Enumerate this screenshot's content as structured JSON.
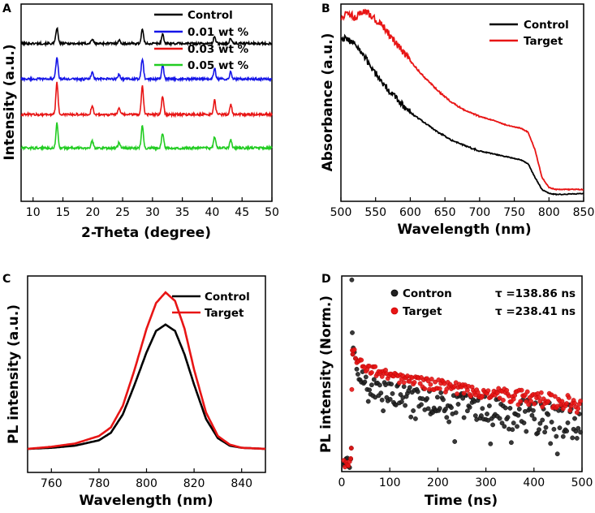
{
  "chart_data": [
    {
      "panel": "A",
      "type": "line",
      "xlabel": "2-Theta (degree)",
      "ylabel": "Intensity (a.u.)",
      "xlim": [
        8,
        50
      ],
      "xticks": [
        10,
        15,
        20,
        25,
        30,
        35,
        40,
        45,
        50
      ],
      "y_ticks_labeled": false,
      "peaks_deg": [
        14.0,
        19.9,
        24.4,
        28.3,
        31.7,
        40.4,
        43.1
      ],
      "peak_heights": [
        1.0,
        0.28,
        0.22,
        0.9,
        0.6,
        0.45,
        0.32
      ],
      "series": [
        {
          "name": "Control",
          "color": "#000000",
          "baseline": 0.8,
          "scale": 0.8
        },
        {
          "name": "0.01 wt %",
          "color": "#1515e8",
          "baseline": 0.62,
          "scale": 1.15
        },
        {
          "name": "0.03 wt %",
          "color": "#e81515",
          "baseline": 0.44,
          "scale": 1.6
        },
        {
          "name": "0.05 wt %",
          "color": "#22cc22",
          "baseline": 0.27,
          "scale": 1.25
        }
      ]
    },
    {
      "panel": "B",
      "type": "line",
      "xlabel": "Wavelength (nm)",
      "ylabel": "Absorbance (a.u.)",
      "xlim": [
        500,
        850
      ],
      "xticks": [
        500,
        550,
        600,
        650,
        700,
        750,
        800,
        850
      ],
      "y_ticks_labeled": false,
      "series": [
        {
          "name": "Control",
          "color": "#000000",
          "x": [
            500,
            510,
            520,
            540,
            560,
            580,
            600,
            620,
            640,
            660,
            680,
            700,
            720,
            740,
            760,
            770,
            780,
            790,
            800,
            810,
            820,
            850
          ],
          "y": [
            0.83,
            0.82,
            0.8,
            0.7,
            0.6,
            0.52,
            0.45,
            0.4,
            0.35,
            0.31,
            0.28,
            0.255,
            0.24,
            0.225,
            0.21,
            0.19,
            0.12,
            0.06,
            0.04,
            0.035,
            0.035,
            0.04
          ]
        },
        {
          "name": "Target",
          "color": "#e81515",
          "x": [
            500,
            510,
            520,
            530,
            540,
            550,
            560,
            580,
            600,
            620,
            640,
            660,
            680,
            700,
            720,
            740,
            760,
            770,
            780,
            790,
            800,
            810,
            820,
            850
          ],
          "y": [
            0.93,
            0.96,
            0.93,
            0.96,
            0.95,
            0.92,
            0.89,
            0.8,
            0.71,
            0.63,
            0.56,
            0.5,
            0.46,
            0.43,
            0.41,
            0.385,
            0.37,
            0.35,
            0.26,
            0.12,
            0.07,
            0.06,
            0.06,
            0.06
          ]
        }
      ]
    },
    {
      "panel": "C",
      "type": "line",
      "xlabel": "Wavelength (nm)",
      "ylabel": "PL intensity (a.u.)",
      "xlim": [
        750,
        850
      ],
      "xticks": [
        760,
        780,
        800,
        820,
        840
      ],
      "y_ticks_labeled": false,
      "series": [
        {
          "name": "Control",
          "color": "#000000",
          "x": [
            750,
            760,
            770,
            780,
            785,
            790,
            795,
            800,
            804,
            808,
            812,
            816,
            820,
            825,
            830,
            835,
            840,
            850
          ],
          "y": [
            0.0,
            0.005,
            0.015,
            0.04,
            0.075,
            0.16,
            0.3,
            0.45,
            0.55,
            0.58,
            0.55,
            0.44,
            0.3,
            0.14,
            0.05,
            0.015,
            0.005,
            0.0
          ]
        },
        {
          "name": "Target",
          "color": "#e81515",
          "x": [
            750,
            760,
            770,
            780,
            785,
            790,
            795,
            800,
            804,
            808,
            812,
            816,
            820,
            825,
            830,
            835,
            840,
            850
          ],
          "y": [
            0.0,
            0.01,
            0.025,
            0.06,
            0.1,
            0.2,
            0.37,
            0.56,
            0.68,
            0.73,
            0.69,
            0.56,
            0.37,
            0.17,
            0.06,
            0.02,
            0.005,
            0.0
          ]
        }
      ]
    },
    {
      "panel": "D",
      "type": "scatter",
      "xlabel": "Time (ns)",
      "ylabel": "PL intensity (Norm.)",
      "xlim": [
        0,
        500
      ],
      "xticks": [
        0,
        100,
        200,
        300,
        400,
        500
      ],
      "y_ticks_labeled": false,
      "series": [
        {
          "name": "Contron",
          "color": "#222222",
          "tau_label": "τ =138.86 ns",
          "tau_color": "#000000",
          "decay_x": [
            22,
            30,
            50,
            100,
            150,
            200,
            300,
            400,
            500
          ],
          "decay_y": [
            0.62,
            0.52,
            0.45,
            0.4,
            0.37,
            0.35,
            0.31,
            0.28,
            0.25
          ]
        },
        {
          "name": "Target",
          "color": "#e81515",
          "tau_label": "τ =238.41 ns",
          "tau_color": "#e81515",
          "decay_x": [
            22,
            30,
            50,
            100,
            150,
            200,
            300,
            400,
            500
          ],
          "decay_y": [
            0.66,
            0.58,
            0.53,
            0.49,
            0.46,
            0.44,
            0.4,
            0.37,
            0.34
          ]
        }
      ]
    }
  ]
}
